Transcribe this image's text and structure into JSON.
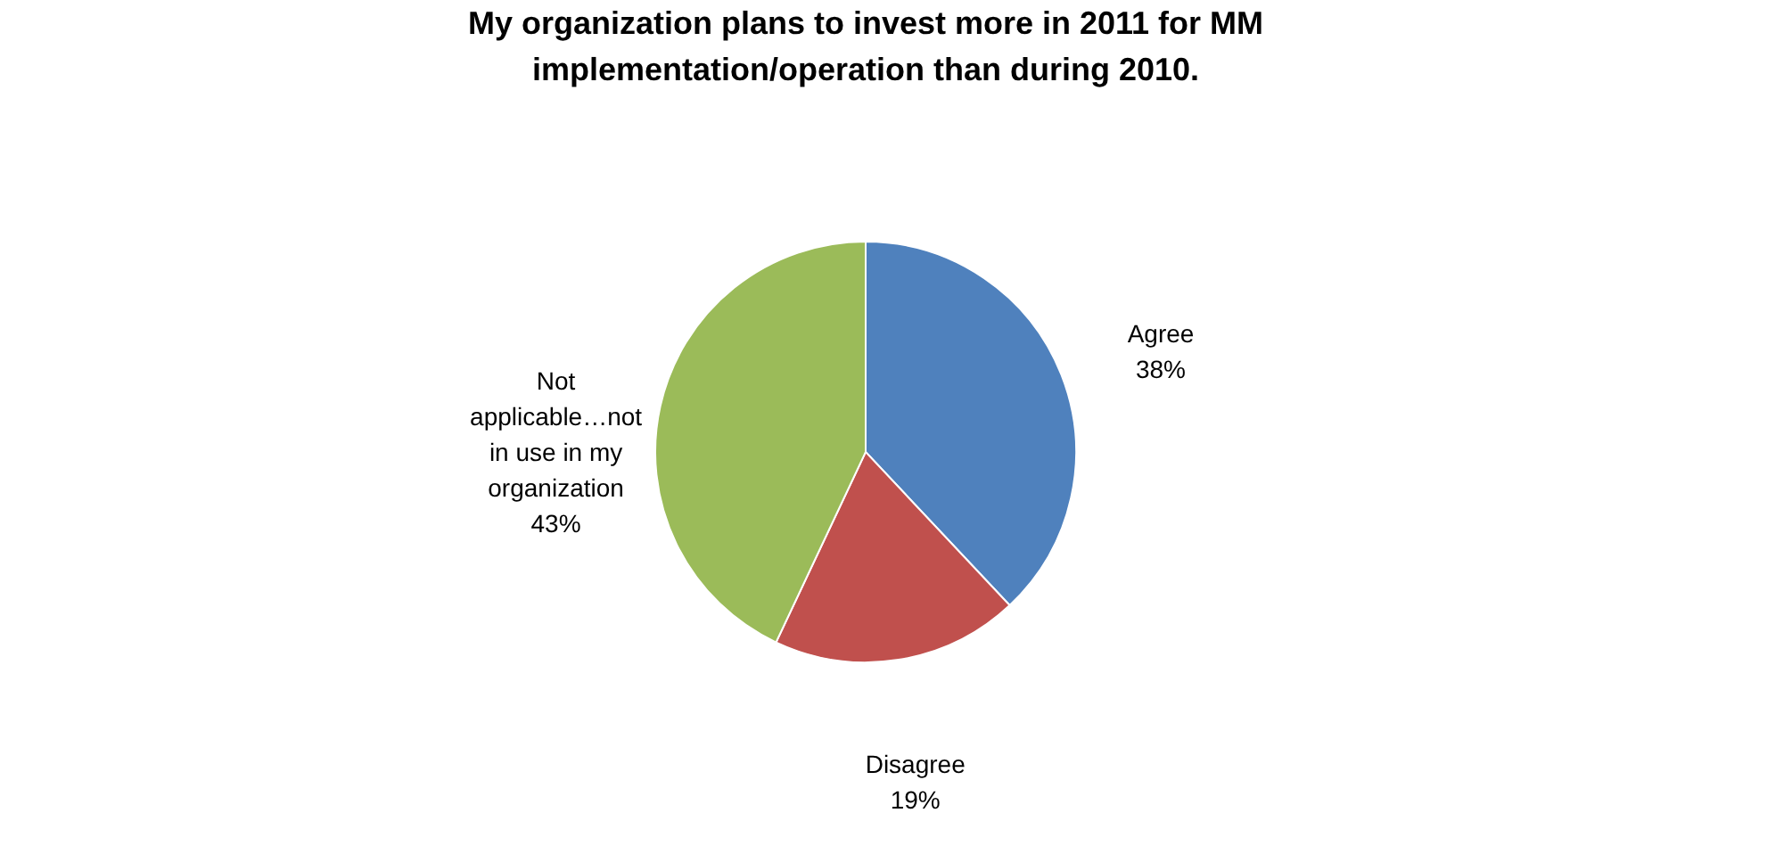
{
  "chart_data": {
    "type": "pie",
    "title": "My organization plans to invest more in 2011 for MM implementation/operation  than during 2010.",
    "categories": [
      "Agree",
      "Disagree",
      "Not applicable…not in use in my organization"
    ],
    "values": [
      38,
      19,
      43
    ],
    "value_labels": [
      "38%",
      "19%",
      "43%"
    ],
    "colors": [
      "#4f81bd",
      "#c0504d",
      "#9bbb59"
    ],
    "legend": false
  }
}
